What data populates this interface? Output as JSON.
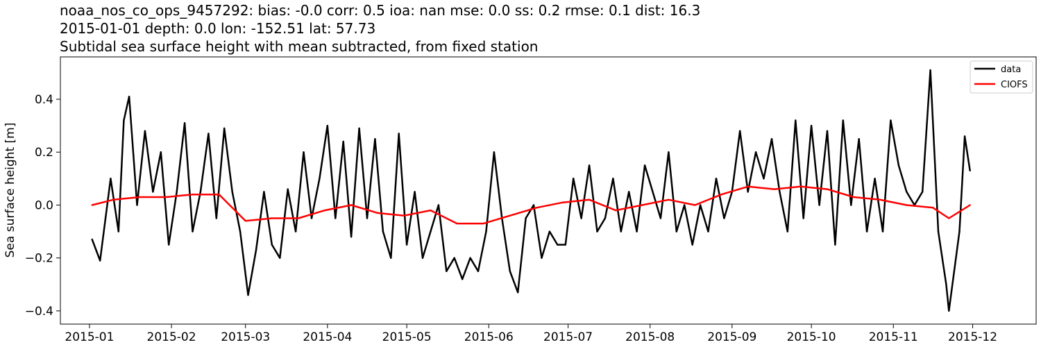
{
  "chart_data": {
    "type": "line",
    "title_lines": [
      "noaa_nos_co_ops_9457292: bias: -0.0  corr: 0.5  ioa: nan  mse: 0.0  ss: 0.2  rmse: 0.1  dist: 16.3",
      "2015-01-01 depth: 0.0 lon: -152.51 lat: 57.73",
      "Subtidal sea surface height with mean subtracted, from fixed station"
    ],
    "xlabel": "",
    "ylabel": "Sea surface height [m]",
    "xlim": [
      "2014-12-21",
      "2015-12-25"
    ],
    "ylim": [
      -0.45,
      0.56
    ],
    "x_ticks": [
      "2015-01",
      "2015-02",
      "2015-03",
      "2015-04",
      "2015-05",
      "2015-06",
      "2015-07",
      "2015-08",
      "2015-09",
      "2015-10",
      "2015-11",
      "2015-12"
    ],
    "y_ticks": [
      -0.4,
      -0.2,
      0.0,
      0.2,
      0.4
    ],
    "y_tick_labels": [
      "−0.4",
      "−0.2",
      "0.0",
      "0.2",
      "0.4"
    ],
    "grid": false,
    "legend_position": "top-right",
    "series": [
      {
        "name": "data",
        "color": "#000000",
        "x": [
          "2015-01-02",
          "2015-01-05",
          "2015-01-09",
          "2015-01-12",
          "2015-01-14",
          "2015-01-16",
          "2015-01-19",
          "2015-01-22",
          "2015-01-25",
          "2015-01-28",
          "2015-01-31",
          "2015-02-03",
          "2015-02-06",
          "2015-02-09",
          "2015-02-12",
          "2015-02-15",
          "2015-02-18",
          "2015-02-21",
          "2015-02-24",
          "2015-02-27",
          "2015-03-02",
          "2015-03-05",
          "2015-03-08",
          "2015-03-11",
          "2015-03-14",
          "2015-03-17",
          "2015-03-20",
          "2015-03-23",
          "2015-03-26",
          "2015-03-29",
          "2015-04-01",
          "2015-04-04",
          "2015-04-07",
          "2015-04-10",
          "2015-04-13",
          "2015-04-16",
          "2015-04-19",
          "2015-04-22",
          "2015-04-25",
          "2015-04-28",
          "2015-05-01",
          "2015-05-04",
          "2015-05-07",
          "2015-05-10",
          "2015-05-13",
          "2015-05-16",
          "2015-05-19",
          "2015-05-22",
          "2015-05-25",
          "2015-05-28",
          "2015-05-31",
          "2015-06-03",
          "2015-06-06",
          "2015-06-09",
          "2015-06-12",
          "2015-06-15",
          "2015-06-18",
          "2015-06-21",
          "2015-06-24",
          "2015-06-27",
          "2015-06-30",
          "2015-07-03",
          "2015-07-06",
          "2015-07-09",
          "2015-07-12",
          "2015-07-15",
          "2015-07-18",
          "2015-07-21",
          "2015-07-24",
          "2015-07-27",
          "2015-07-30",
          "2015-08-02",
          "2015-08-05",
          "2015-08-08",
          "2015-08-11",
          "2015-08-14",
          "2015-08-17",
          "2015-08-20",
          "2015-08-23",
          "2015-08-26",
          "2015-08-29",
          "2015-09-01",
          "2015-09-04",
          "2015-09-07",
          "2015-09-10",
          "2015-09-13",
          "2015-09-16",
          "2015-09-19",
          "2015-09-22",
          "2015-09-25",
          "2015-09-28",
          "2015-10-01",
          "2015-10-04",
          "2015-10-07",
          "2015-10-10",
          "2015-10-13",
          "2015-10-16",
          "2015-10-19",
          "2015-10-22",
          "2015-10-25",
          "2015-10-28",
          "2015-10-31",
          "2015-11-03",
          "2015-11-06",
          "2015-11-09",
          "2015-11-12",
          "2015-11-15",
          "2015-11-18",
          "2015-11-21",
          "2015-11-22",
          "2015-11-24",
          "2015-11-26",
          "2015-11-28",
          "2015-11-30"
        ],
        "values": [
          -0.13,
          -0.21,
          0.1,
          -0.1,
          0.32,
          0.41,
          0.0,
          0.28,
          0.05,
          0.2,
          -0.15,
          0.05,
          0.31,
          -0.1,
          0.05,
          0.27,
          -0.05,
          0.29,
          0.05,
          -0.1,
          -0.34,
          -0.17,
          0.05,
          -0.15,
          -0.2,
          0.06,
          -0.1,
          0.2,
          -0.05,
          0.1,
          0.3,
          -0.05,
          0.24,
          -0.12,
          0.29,
          -0.05,
          0.25,
          -0.1,
          -0.2,
          0.27,
          -0.15,
          0.05,
          -0.2,
          -0.1,
          0.0,
          -0.25,
          -0.2,
          -0.28,
          -0.2,
          -0.25,
          -0.1,
          0.2,
          -0.05,
          -0.25,
          -0.33,
          -0.05,
          0.0,
          -0.2,
          -0.1,
          -0.15,
          -0.15,
          0.1,
          -0.05,
          0.15,
          -0.1,
          -0.05,
          0.1,
          -0.1,
          0.05,
          -0.1,
          0.15,
          0.05,
          -0.05,
          0.2,
          -0.1,
          0.0,
          -0.15,
          0.0,
          -0.1,
          0.1,
          -0.05,
          0.05,
          0.28,
          0.05,
          0.2,
          0.1,
          0.25,
          0.05,
          -0.1,
          0.32,
          -0.05,
          0.3,
          0.0,
          0.28,
          -0.15,
          0.32,
          0.0,
          0.25,
          -0.1,
          0.1,
          -0.1,
          0.32,
          0.15,
          0.05,
          0.0,
          0.05,
          0.51,
          -0.1,
          -0.3,
          -0.4,
          -0.25,
          -0.1,
          0.26,
          0.13
        ]
      },
      {
        "name": "CIOFS",
        "color": "#ff0000",
        "x": [
          "2015-01-02",
          "2015-01-10",
          "2015-01-20",
          "2015-01-30",
          "2015-02-09",
          "2015-02-19",
          "2015-03-01",
          "2015-03-11",
          "2015-03-21",
          "2015-03-31",
          "2015-04-10",
          "2015-04-20",
          "2015-04-30",
          "2015-05-10",
          "2015-05-20",
          "2015-05-30",
          "2015-06-09",
          "2015-06-19",
          "2015-06-29",
          "2015-07-09",
          "2015-07-19",
          "2015-07-29",
          "2015-08-08",
          "2015-08-18",
          "2015-08-28",
          "2015-09-07",
          "2015-09-17",
          "2015-09-27",
          "2015-10-07",
          "2015-10-17",
          "2015-10-27",
          "2015-11-06",
          "2015-11-16",
          "2015-11-22",
          "2015-11-30"
        ],
        "values": [
          0.0,
          0.02,
          0.03,
          0.03,
          0.04,
          0.04,
          -0.06,
          -0.05,
          -0.05,
          -0.02,
          0.0,
          -0.03,
          -0.04,
          -0.02,
          -0.07,
          -0.07,
          -0.04,
          -0.01,
          0.01,
          0.02,
          -0.02,
          0.0,
          0.02,
          0.0,
          0.04,
          0.07,
          0.06,
          0.07,
          0.06,
          0.03,
          0.02,
          0.0,
          -0.01,
          -0.05,
          0.0
        ]
      }
    ]
  }
}
